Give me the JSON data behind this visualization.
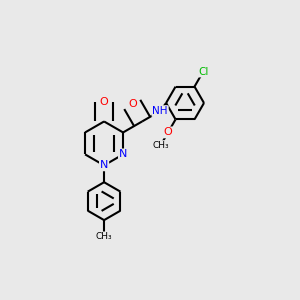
{
  "background_color": "#e9e9e9",
  "atom_colors": {
    "C": "#000000",
    "N": "#0000ff",
    "O": "#ff0000",
    "Cl": "#00bb00",
    "H": "#404040"
  },
  "bond_color": "#000000",
  "bond_width": 1.5,
  "dbo": 0.04
}
